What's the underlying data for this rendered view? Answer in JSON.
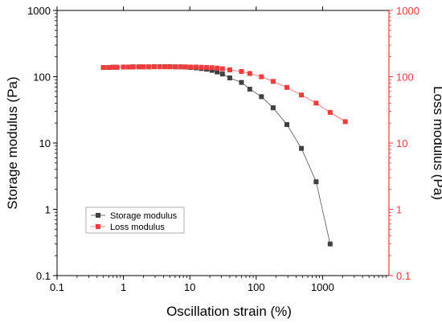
{
  "chart_data": {
    "type": "scatter",
    "title": "",
    "xlabel": "Oscillation strain (%)",
    "ylabel_left": "Storage modulus (Pa)",
    "ylabel_right": "Loss modulus (Pa)",
    "xscale": "log",
    "yscale": "log",
    "xlim": [
      0.1,
      10000
    ],
    "ylim": [
      0.1,
      1000
    ],
    "x_ticks": [
      "0.1",
      "1",
      "10",
      "100",
      "1000"
    ],
    "y_ticks": [
      "0.1",
      "1",
      "10",
      "100",
      "1000"
    ],
    "legend_position": "lower-left",
    "series": [
      {
        "name": "Storage modulus",
        "color": "#404040",
        "axis": "left",
        "x": [
          0.5,
          0.6,
          0.7,
          0.8,
          1.0,
          1.2,
          1.4,
          1.7,
          2.0,
          2.4,
          2.9,
          3.5,
          4.2,
          5.0,
          6.0,
          7.2,
          8.6,
          10.3,
          12.4,
          14.9,
          17.9,
          21.5,
          25.8,
          31.0,
          40,
          60,
          80,
          120,
          180,
          290,
          480,
          800,
          1300
        ],
        "y": [
          138,
          138,
          139,
          139,
          140,
          140,
          141,
          141,
          141,
          141,
          142,
          142,
          142,
          142,
          141,
          141,
          140,
          138,
          136,
          133,
          130,
          125,
          118,
          110,
          96,
          82,
          65,
          50,
          34,
          19,
          8.3,
          2.6,
          0.3
        ]
      },
      {
        "name": "Loss modulus",
        "color": "#f03c3c",
        "axis": "right",
        "x": [
          0.5,
          0.6,
          0.7,
          0.8,
          1.0,
          1.2,
          1.4,
          1.7,
          2.0,
          2.4,
          2.9,
          3.5,
          4.2,
          5.0,
          6.0,
          7.2,
          8.6,
          10.3,
          12.4,
          14.9,
          17.9,
          21.5,
          25.8,
          31.0,
          40,
          60,
          80,
          120,
          180,
          290,
          480,
          800,
          1300,
          2200
        ],
        "y": [
          138,
          138,
          139,
          139,
          140,
          140,
          140,
          141,
          141,
          141,
          141,
          141,
          141,
          141,
          141,
          141,
          141,
          140,
          140,
          139,
          138,
          137,
          135,
          132,
          127,
          120,
          112,
          100,
          85,
          69,
          53,
          40,
          29,
          21
        ]
      }
    ]
  }
}
